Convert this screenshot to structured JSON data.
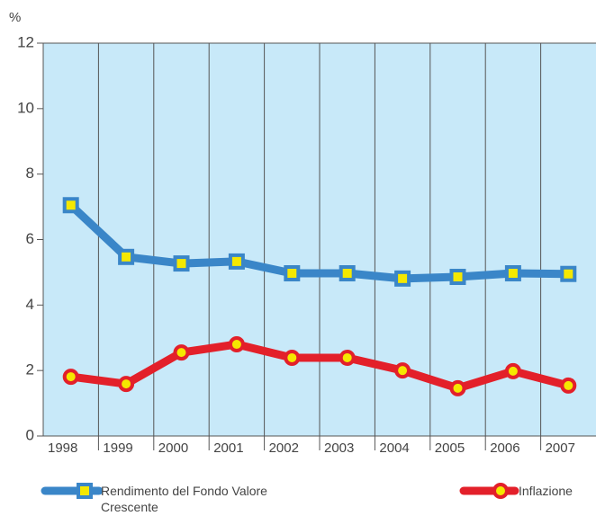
{
  "chart_data": {
    "type": "line",
    "y_label": "%",
    "categories": [
      "1998",
      "1999",
      "2000",
      "2001",
      "2002",
      "2003",
      "2004",
      "2005",
      "2006",
      "2007"
    ],
    "series": [
      {
        "name": "Rendimento del Fondo Valore Crescente",
        "color": "#3a86c8",
        "marker": "square",
        "values": [
          7.05,
          5.47,
          5.27,
          5.33,
          4.97,
          4.97,
          4.81,
          4.86,
          4.97,
          4.95
        ]
      },
      {
        "name": "Inflazione",
        "color": "#e3202a",
        "marker": "circle",
        "values": [
          1.81,
          1.59,
          2.55,
          2.8,
          2.39,
          2.39,
          2.0,
          1.46,
          1.98,
          1.54
        ]
      }
    ],
    "ylim": [
      0,
      12
    ],
    "yticks": [
      0,
      2,
      4,
      6,
      8,
      10,
      12
    ],
    "grid": false
  }
}
